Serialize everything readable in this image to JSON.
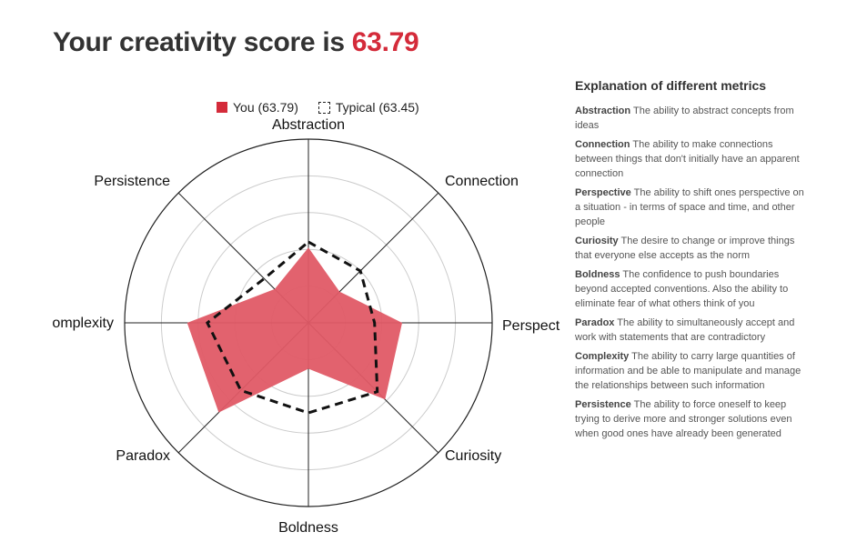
{
  "header": {
    "title_prefix": "Your creativity score is",
    "score": "63.79"
  },
  "legend": {
    "you_label": "You (63.79)",
    "typical_label": "Typical (63.45)"
  },
  "colors": {
    "accent": "#d42b3a",
    "fill": "#e05a66",
    "title": "#333333"
  },
  "chart_data": {
    "type": "radar",
    "axes": [
      "Abstraction",
      "Connection",
      "Perspect",
      "Curiosity",
      "Boldness",
      "Paradox",
      "omplexity",
      "Persistence"
    ],
    "range": [
      0,
      100
    ],
    "rings": 5,
    "series": [
      {
        "name": "You (63.79)",
        "values": [
          41,
          24,
          51,
          59,
          25,
          69,
          66,
          26
        ]
      },
      {
        "name": "Typical (63.45)",
        "values": [
          44,
          40,
          36,
          53,
          49,
          52,
          55,
          34
        ]
      }
    ]
  },
  "explanations": {
    "title": "Explanation of different metrics",
    "items": [
      {
        "name": "Abstraction",
        "desc": "The ability to abstract concepts from ideas"
      },
      {
        "name": "Connection",
        "desc": "The ability to make connections between things that don't initially have an apparent connection"
      },
      {
        "name": "Perspective",
        "desc": "The ability to shift ones perspective on a situation - in terms of space and time, and other people"
      },
      {
        "name": "Curiosity",
        "desc": "The desire to change or improve things that everyone else accepts as the norm"
      },
      {
        "name": "Boldness",
        "desc": "The confidence to push boundaries beyond accepted conventions. Also the ability to eliminate fear of what others think of you"
      },
      {
        "name": "Paradox",
        "desc": "The ability to simultaneously accept and work with statements that are contradictory"
      },
      {
        "name": "Complexity",
        "desc": "The ability to carry large quantities of information and be able to manipulate and manage the relationships between such information"
      },
      {
        "name": "Persistence",
        "desc": "The ability to force oneself to keep trying to derive more and stronger solutions even when good ones have already been generated"
      }
    ]
  }
}
